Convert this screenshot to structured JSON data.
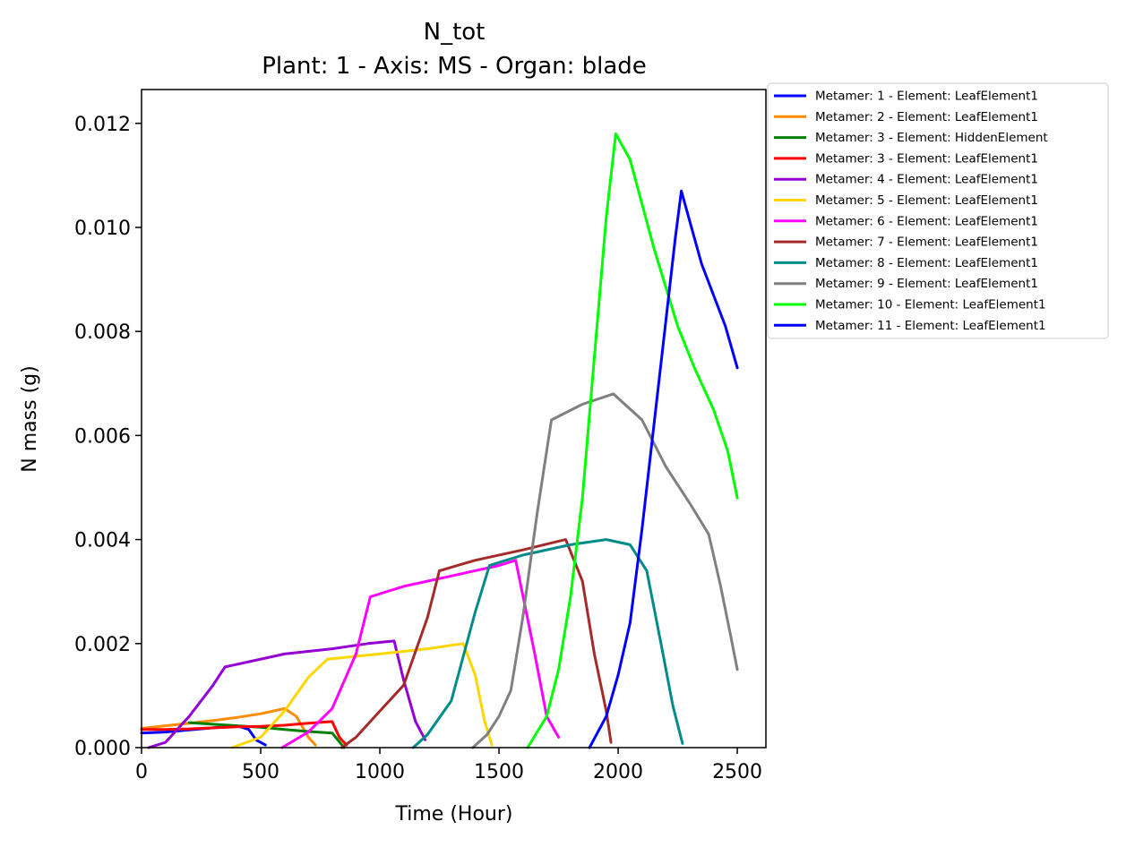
{
  "chart_data": {
    "type": "line",
    "title": "N_tot",
    "subtitle": "Plant: 1 - Axis: MS - Organ: blade",
    "xlabel": "Time (Hour)",
    "ylabel": "N mass (g)",
    "xlim": [
      0,
      2620
    ],
    "ylim": [
      0,
      0.01265
    ],
    "x_ticks": [
      0,
      500,
      1000,
      1500,
      2000,
      2500
    ],
    "x_tick_labels": [
      "0",
      "500",
      "1000",
      "1500",
      "2000",
      "2500"
    ],
    "y_ticks": [
      0,
      0.002,
      0.004,
      0.006,
      0.008,
      0.01,
      0.012
    ],
    "y_tick_labels": [
      "0.000",
      "0.002",
      "0.004",
      "0.006",
      "0.008",
      "0.010",
      "0.012"
    ],
    "grid": false,
    "legend_position": "outside-top-right",
    "series": [
      {
        "name": "Metamer: 1 - Element: LeafElement1",
        "color": "#0000ff",
        "x": [
          0,
          100,
          200,
          300,
          400,
          450,
          480,
          520
        ],
        "y": [
          0.00028,
          0.0003,
          0.00034,
          0.00038,
          0.00042,
          0.00035,
          0.00015,
          5e-05
        ]
      },
      {
        "name": "Metamer: 2 - Element: LeafElement1",
        "color": "#ff8c00",
        "x": [
          0,
          100,
          200,
          300,
          400,
          500,
          600,
          650,
          700,
          730
        ],
        "y": [
          0.00037,
          0.00042,
          0.00047,
          0.00052,
          0.00058,
          0.00065,
          0.00075,
          0.0006,
          0.0002,
          5e-05
        ]
      },
      {
        "name": "Metamer: 3 - Element: HiddenElement",
        "color": "#008000",
        "x": [
          200,
          300,
          400,
          500,
          600,
          700,
          800,
          850
        ],
        "y": [
          0.00048,
          0.00045,
          0.00042,
          0.00039,
          0.00035,
          0.00031,
          0.00028,
          0.0
        ]
      },
      {
        "name": "Metamer: 3 - Element: LeafElement1",
        "color": "#ff0000",
        "x": [
          0,
          100,
          200,
          300,
          400,
          500,
          600,
          700,
          800,
          830,
          860
        ],
        "y": [
          0.00035,
          0.00035,
          0.00036,
          0.00038,
          0.0004,
          0.00041,
          0.00043,
          0.00047,
          0.0005,
          0.0002,
          5e-05
        ]
      },
      {
        "name": "Metamer: 4 - Element: LeafElement1",
        "color": "#9400d3",
        "x": [
          30,
          100,
          200,
          300,
          350,
          450,
          600,
          800,
          950,
          1060,
          1100,
          1150,
          1190
        ],
        "y": [
          0.0,
          0.0001,
          0.0006,
          0.0012,
          0.00155,
          0.00165,
          0.0018,
          0.0019,
          0.002,
          0.00205,
          0.0013,
          0.0005,
          0.00015
        ]
      },
      {
        "name": "Metamer: 5 - Element: LeafElement1",
        "color": "#ffd700",
        "x": [
          380,
          500,
          600,
          700,
          780,
          1000,
          1200,
          1350,
          1400,
          1440,
          1470
        ],
        "y": [
          0.0,
          0.0002,
          0.0007,
          0.00135,
          0.0017,
          0.0018,
          0.0019,
          0.002,
          0.0014,
          0.0005,
          5e-05
        ]
      },
      {
        "name": "Metamer: 6 - Element: LeafElement1",
        "color": "#ff00ff",
        "x": [
          590,
          700,
          800,
          900,
          960,
          1100,
          1300,
          1500,
          1570,
          1650,
          1700,
          1750
        ],
        "y": [
          0.0,
          0.0003,
          0.00075,
          0.0018,
          0.0029,
          0.0031,
          0.0033,
          0.0035,
          0.0036,
          0.0018,
          0.0006,
          0.0002
        ]
      },
      {
        "name": "Metamer: 7 - Element: LeafElement1",
        "color": "#a52a2a",
        "x": [
          840,
          900,
          1000,
          1100,
          1200,
          1250,
          1400,
          1600,
          1780,
          1850,
          1900,
          1950,
          1970
        ],
        "y": [
          0.0,
          0.0002,
          0.0007,
          0.0012,
          0.0025,
          0.0034,
          0.0036,
          0.0038,
          0.004,
          0.0032,
          0.0018,
          0.0007,
          0.0001
        ]
      },
      {
        "name": "Metamer: 8 - Element: LeafElement1",
        "color": "#008b8b",
        "x": [
          1140,
          1200,
          1300,
          1400,
          1460,
          1600,
          1800,
          1950,
          2050,
          2120,
          2180,
          2230,
          2270
        ],
        "y": [
          0.0,
          0.00025,
          0.0009,
          0.0026,
          0.0035,
          0.0037,
          0.0039,
          0.004,
          0.0039,
          0.0034,
          0.002,
          0.0008,
          8e-05
        ]
      },
      {
        "name": "Metamer: 9 - Element: LeafElement1",
        "color": "#808080",
        "x": [
          1390,
          1450,
          1500,
          1550,
          1600,
          1660,
          1720,
          1850,
          1980,
          2100,
          2200,
          2300,
          2380,
          2430,
          2470,
          2500
        ],
        "y": [
          0.0,
          0.00025,
          0.0006,
          0.0011,
          0.0025,
          0.0045,
          0.0063,
          0.0066,
          0.0068,
          0.0063,
          0.0054,
          0.0047,
          0.0041,
          0.0031,
          0.0022,
          0.0015
        ]
      },
      {
        "name": "Metamer: 10 - Element: LeafElement1",
        "color": "#00ff00",
        "x": [
          1620,
          1700,
          1750,
          1800,
          1850,
          1900,
          1950,
          1990,
          2050,
          2150,
          2250,
          2320,
          2400,
          2460,
          2500
        ],
        "y": [
          0.0,
          0.0006,
          0.0015,
          0.0029,
          0.0048,
          0.0075,
          0.0102,
          0.0118,
          0.0113,
          0.0096,
          0.0081,
          0.0073,
          0.0065,
          0.0057,
          0.0048
        ]
      },
      {
        "name": "Metamer: 11 - Element: LeafElement1",
        "color": "#0000ff",
        "x": [
          1880,
          1950,
          2000,
          2050,
          2100,
          2150,
          2200,
          2240,
          2265,
          2350,
          2450,
          2500
        ],
        "y": [
          0.0,
          0.0006,
          0.0014,
          0.0024,
          0.0042,
          0.0062,
          0.0082,
          0.0098,
          0.0107,
          0.0093,
          0.0081,
          0.0073
        ]
      }
    ]
  }
}
